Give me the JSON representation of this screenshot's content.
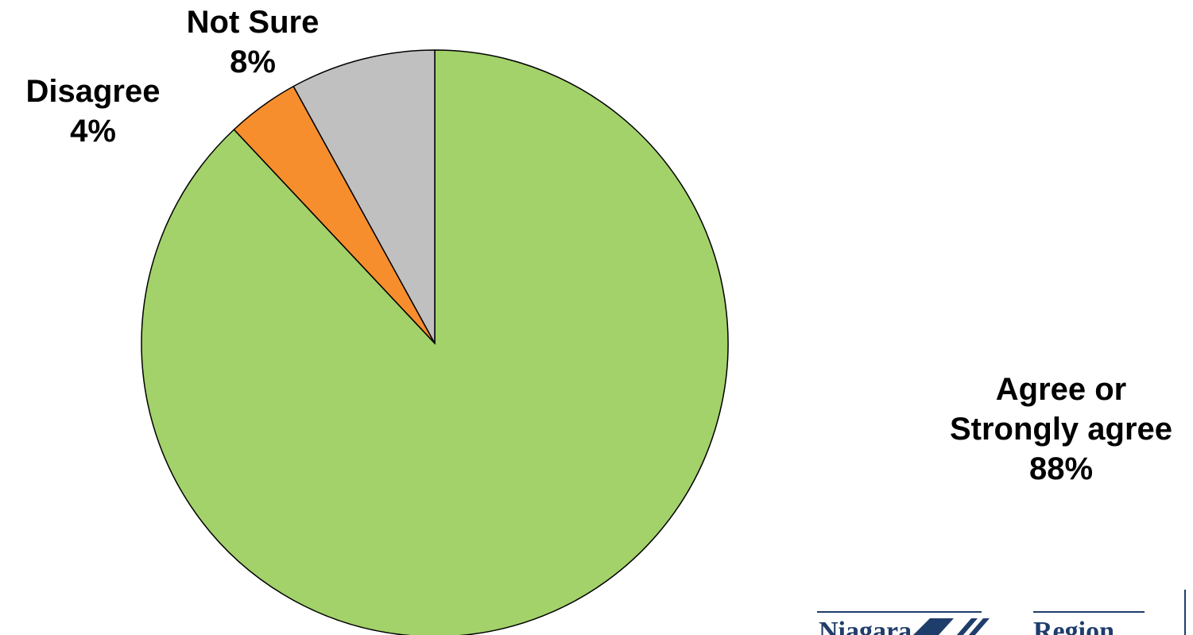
{
  "chart_data": {
    "type": "pie",
    "categories": [
      "Agree or Strongly agree",
      "Disagree",
      "Not Sure"
    ],
    "values": [
      88,
      4,
      8
    ],
    "value_labels": [
      "88%",
      "4%",
      "8%"
    ],
    "colors": [
      "#a3d16a",
      "#f68e2d",
      "#c0c0c0"
    ]
  },
  "logo": {
    "left": "Niagara",
    "right": "Region"
  }
}
